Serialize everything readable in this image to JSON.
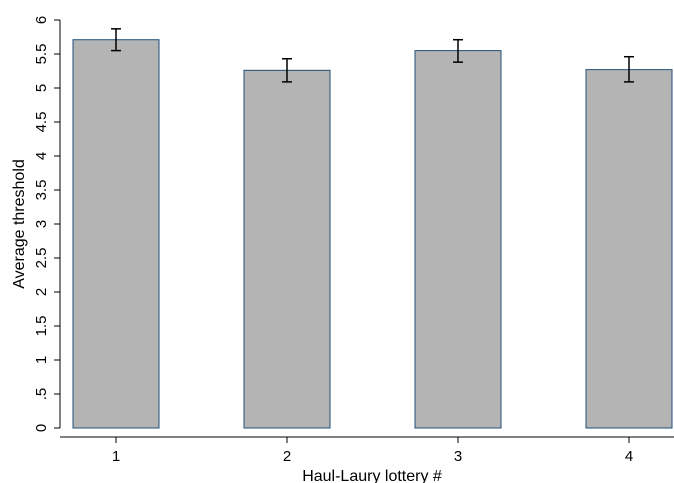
{
  "chart_data": {
    "type": "bar",
    "title": "",
    "xlabel": "Haul-Laury lottery #",
    "ylabel": "Average threshold",
    "categories": [
      "1",
      "2",
      "3",
      "4"
    ],
    "values": [
      5.71,
      5.26,
      5.55,
      5.27
    ],
    "error_bars": [
      {
        "low": 5.55,
        "high": 5.87
      },
      {
        "low": 5.09,
        "high": 5.43
      },
      {
        "low": 5.38,
        "high": 5.71
      },
      {
        "low": 5.09,
        "high": 5.46
      }
    ],
    "ylim": [
      0,
      6
    ],
    "y_ticks": [
      {
        "value": 0,
        "label": "0"
      },
      {
        "value": 0.5,
        "label": ".5"
      },
      {
        "value": 1,
        "label": "1"
      },
      {
        "value": 1.5,
        "label": "1.5"
      },
      {
        "value": 2,
        "label": "2"
      },
      {
        "value": 2.5,
        "label": "2.5"
      },
      {
        "value": 3,
        "label": "3"
      },
      {
        "value": 3.5,
        "label": "3.5"
      },
      {
        "value": 4,
        "label": "4"
      },
      {
        "value": 4.5,
        "label": "4.5"
      },
      {
        "value": 5,
        "label": "5"
      },
      {
        "value": 5.5,
        "label": "5.5"
      },
      {
        "value": 6,
        "label": "6"
      }
    ],
    "grid": false,
    "legend": "none",
    "colors": {
      "bar_fill": "#b4b4b4",
      "bar_stroke": "#1f4e79",
      "error_bar": "#000000",
      "axis": "#000000"
    }
  }
}
